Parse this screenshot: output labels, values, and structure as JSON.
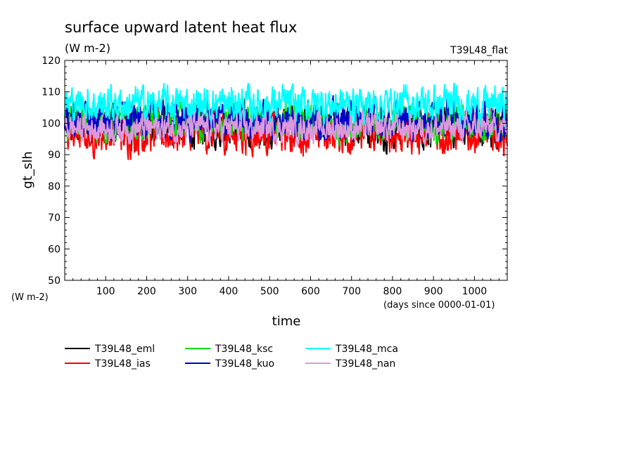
{
  "chart_data": {
    "type": "line",
    "title": "surface upward latent heat flux",
    "title_units": "(W m-2)",
    "experiment": "T39L48_flat",
    "ylabel": "gt_slh",
    "y_units_label": "(W m-2)",
    "xlabel": "time",
    "x_units_label": "(days since 0000-01-01)",
    "xlim": [
      0,
      1080
    ],
    "ylim": [
      50,
      120
    ],
    "x_ticks": [
      "100",
      "200",
      "300",
      "400",
      "500",
      "600",
      "700",
      "800",
      "900",
      "1000"
    ],
    "y_ticks": [
      "50",
      "60",
      "70",
      "80",
      "90",
      "100",
      "110",
      "120"
    ],
    "series": [
      {
        "name": "T39L48_eml",
        "color": "#000000",
        "mean": 99,
        "amplitude": 4.5
      },
      {
        "name": "T39L48_ias",
        "color": "#ff0000",
        "mean": 97,
        "amplitude": 4.5
      },
      {
        "name": "T39L48_ksc",
        "color": "#00dd00",
        "mean": 100,
        "amplitude": 4.0
      },
      {
        "name": "T39L48_kuo",
        "color": "#0000cc",
        "mean": 101,
        "amplitude": 4.0
      },
      {
        "name": "T39L48_mca",
        "color": "#00ffff",
        "mean": 106,
        "amplitude": 4.0
      },
      {
        "name": "T39L48_nan",
        "color": "#dd99dd",
        "mean": 98.5,
        "amplitude": 3.0
      }
    ]
  }
}
